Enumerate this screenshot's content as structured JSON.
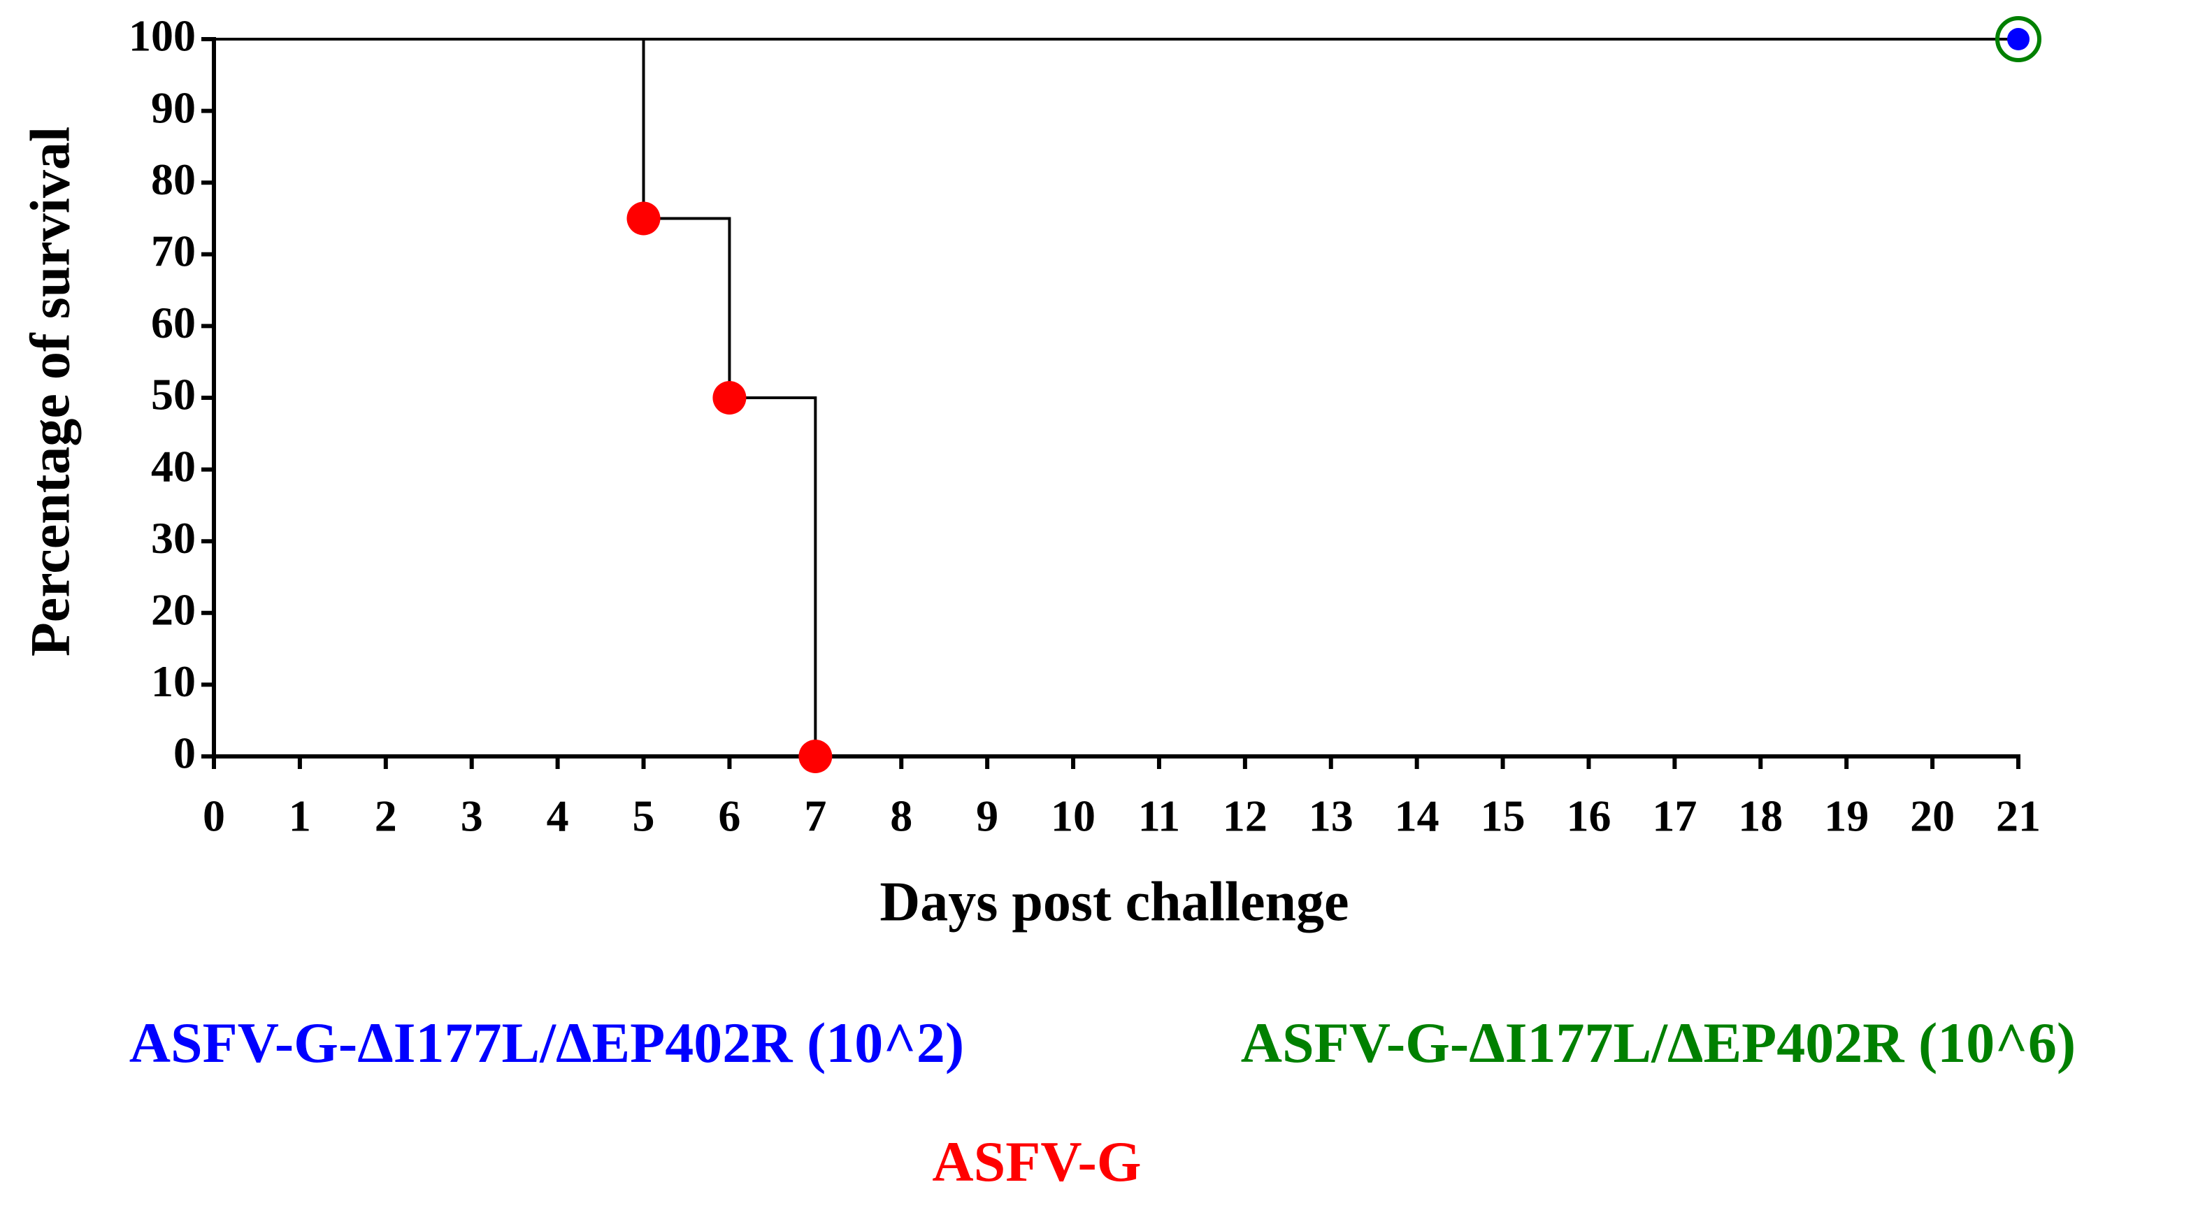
{
  "chart_data": {
    "type": "step",
    "x_label": "Days post challenge",
    "y_label": "Percentage of survival",
    "xlim": [
      0,
      21
    ],
    "ylim": [
      0,
      100
    ],
    "xticks": [
      0,
      1,
      2,
      3,
      4,
      5,
      6,
      7,
      8,
      9,
      10,
      11,
      12,
      13,
      14,
      15,
      16,
      17,
      18,
      19,
      20,
      21
    ],
    "yticks": [
      0,
      10,
      20,
      30,
      40,
      50,
      60,
      70,
      80,
      90,
      100
    ],
    "line_color": "#000000",
    "series": [
      {
        "name": "ASFV-G-ΔI177L/ΔEP402R (10^2)",
        "color": "#0000ff",
        "marker": "dot",
        "x": [
          0,
          21
        ],
        "values": [
          100,
          100
        ]
      },
      {
        "name": "ASFV-G-ΔI177L/ΔEP402R (10^6)",
        "color": "#008000",
        "marker": "ring",
        "x": [
          0,
          21
        ],
        "values": [
          100,
          100
        ]
      },
      {
        "name": "ASFV-G",
        "color": "#ff0000",
        "marker": "big-dot",
        "x": [
          0,
          5,
          6,
          7
        ],
        "values": [
          100,
          75,
          50,
          0
        ]
      }
    ]
  }
}
